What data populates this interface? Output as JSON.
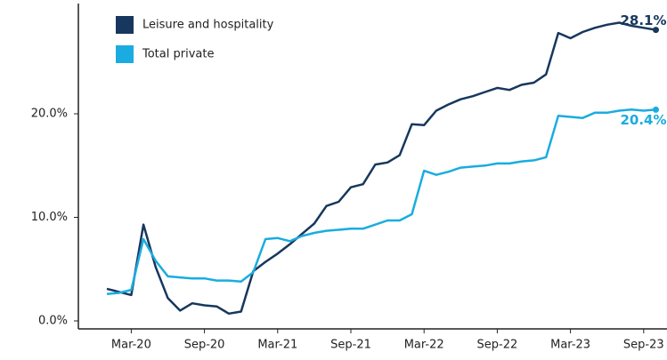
{
  "chart_data": {
    "type": "line",
    "categories": [
      null,
      null,
      "Mar-20",
      null,
      null,
      null,
      null,
      null,
      "Sep-20",
      null,
      null,
      null,
      null,
      null,
      "Mar-21",
      null,
      null,
      null,
      null,
      null,
      "Sep-21",
      null,
      null,
      null,
      null,
      null,
      "Mar-22",
      null,
      null,
      null,
      null,
      null,
      "Sep-22",
      null,
      null,
      null,
      null,
      null,
      "Mar-23",
      null,
      null,
      null,
      null,
      null,
      "Sep-23",
      null
    ],
    "series": [
      {
        "name": "Leisure and hospitality",
        "color": "#17375e",
        "values": [
          3.1,
          2.8,
          2.5,
          9.3,
          5.2,
          2.2,
          1.0,
          1.7,
          1.5,
          1.4,
          0.7,
          0.9,
          4.8,
          5.7,
          6.5,
          7.4,
          8.4,
          9.4,
          11.1,
          11.5,
          12.9,
          13.2,
          15.1,
          15.3,
          16.0,
          19.0,
          18.9,
          20.3,
          20.9,
          21.4,
          21.7,
          22.1,
          22.5,
          22.3,
          22.8,
          23.0,
          23.8,
          27.8,
          27.3,
          27.9,
          28.3,
          28.6,
          28.8,
          28.5,
          28.3,
          28.1
        ],
        "value_labels": [
          null,
          null,
          null,
          null,
          null,
          null,
          null,
          null,
          null,
          null,
          null,
          null,
          null,
          null,
          null,
          null,
          null,
          null,
          null,
          null,
          null,
          null,
          null,
          null,
          null,
          null,
          null,
          null,
          null,
          null,
          null,
          null,
          null,
          null,
          null,
          null,
          null,
          null,
          null,
          null,
          null,
          null,
          null,
          null,
          null,
          "28.1%"
        ]
      },
      {
        "name": "Total private",
        "color": "#1aace0",
        "values": [
          2.6,
          2.7,
          3.0,
          7.9,
          5.8,
          4.3,
          4.2,
          4.1,
          4.1,
          3.9,
          3.9,
          3.8,
          4.7,
          7.9,
          8.0,
          7.7,
          8.2,
          8.5,
          8.7,
          8.8,
          8.9,
          8.9,
          9.3,
          9.7,
          9.7,
          10.3,
          14.5,
          14.1,
          14.4,
          14.8,
          14.9,
          15.0,
          15.2,
          15.2,
          15.4,
          15.5,
          15.8,
          19.8,
          19.7,
          19.6,
          20.1,
          20.1,
          20.3,
          20.4,
          20.3,
          20.4
        ],
        "value_labels": [
          null,
          null,
          null,
          null,
          null,
          null,
          null,
          null,
          null,
          null,
          null,
          null,
          null,
          null,
          null,
          null,
          null,
          null,
          null,
          null,
          null,
          null,
          null,
          null,
          null,
          null,
          null,
          null,
          null,
          null,
          null,
          null,
          null,
          null,
          null,
          null,
          null,
          null,
          null,
          null,
          null,
          null,
          null,
          null,
          null,
          "20.4%"
        ]
      }
    ],
    "ylim": [
      0,
      30
    ],
    "yticks": [
      {
        "value": 0,
        "label": "0.0%"
      },
      {
        "value": 10,
        "label": "10.0%"
      },
      {
        "value": 20,
        "label": "20.0%"
      }
    ],
    "grid": false,
    "legend": "upper left"
  }
}
